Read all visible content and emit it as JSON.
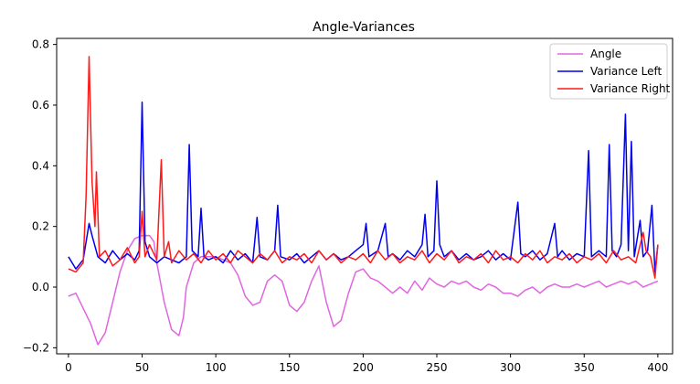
{
  "chart_data": {
    "type": "line",
    "title": "Angle-Variances",
    "xlabel": "",
    "ylabel": "",
    "xlim": [
      -8,
      410
    ],
    "ylim": [
      -0.22,
      0.82
    ],
    "x_ticks": [
      0,
      50,
      100,
      150,
      200,
      250,
      300,
      350,
      400
    ],
    "y_ticks": [
      -0.2,
      0.0,
      0.2,
      0.4,
      0.6,
      0.8
    ],
    "x_tick_labels": [
      "0",
      "50",
      "100",
      "150",
      "200",
      "250",
      "300",
      "350",
      "400"
    ],
    "y_tick_labels": [
      "−0.2",
      "0.0",
      "0.2",
      "0.4",
      "0.6",
      "0.8"
    ],
    "legend_position": "top-right",
    "grid": false,
    "series": [
      {
        "name": "Angle",
        "color": "#e066e0",
        "points": [
          [
            0,
            -0.03
          ],
          [
            5,
            -0.02
          ],
          [
            10,
            -0.07
          ],
          [
            15,
            -0.12
          ],
          [
            20,
            -0.19
          ],
          [
            25,
            -0.15
          ],
          [
            30,
            -0.05
          ],
          [
            35,
            0.05
          ],
          [
            40,
            0.12
          ],
          [
            45,
            0.16
          ],
          [
            50,
            0.17
          ],
          [
            55,
            0.17
          ],
          [
            58,
            0.15
          ],
          [
            60,
            0.08
          ],
          [
            65,
            -0.05
          ],
          [
            70,
            -0.14
          ],
          [
            75,
            -0.16
          ],
          [
            78,
            -0.1
          ],
          [
            80,
            0.0
          ],
          [
            85,
            0.08
          ],
          [
            90,
            0.1
          ],
          [
            100,
            0.1
          ],
          [
            110,
            0.08
          ],
          [
            115,
            0.04
          ],
          [
            120,
            -0.03
          ],
          [
            125,
            -0.06
          ],
          [
            130,
            -0.05
          ],
          [
            135,
            0.02
          ],
          [
            140,
            0.04
          ],
          [
            145,
            0.02
          ],
          [
            150,
            -0.06
          ],
          [
            155,
            -0.08
          ],
          [
            160,
            -0.05
          ],
          [
            165,
            0.02
          ],
          [
            170,
            0.07
          ],
          [
            175,
            -0.05
          ],
          [
            180,
            -0.13
          ],
          [
            185,
            -0.11
          ],
          [
            190,
            -0.02
          ],
          [
            195,
            0.05
          ],
          [
            200,
            0.06
          ],
          [
            205,
            0.03
          ],
          [
            210,
            0.02
          ],
          [
            215,
            0.0
          ],
          [
            220,
            -0.02
          ],
          [
            225,
            0.0
          ],
          [
            230,
            -0.02
          ],
          [
            235,
            0.02
          ],
          [
            240,
            -0.01
          ],
          [
            245,
            0.03
          ],
          [
            250,
            0.01
          ],
          [
            255,
            0.0
          ],
          [
            260,
            0.02
          ],
          [
            265,
            0.01
          ],
          [
            270,
            0.02
          ],
          [
            275,
            0.0
          ],
          [
            280,
            -0.01
          ],
          [
            285,
            0.01
          ],
          [
            290,
            0.0
          ],
          [
            295,
            -0.02
          ],
          [
            300,
            -0.02
          ],
          [
            305,
            -0.03
          ],
          [
            310,
            -0.01
          ],
          [
            315,
            0.0
          ],
          [
            320,
            -0.02
          ],
          [
            325,
            0.0
          ],
          [
            330,
            0.01
          ],
          [
            335,
            0.0
          ],
          [
            340,
            0.0
          ],
          [
            345,
            0.01
          ],
          [
            350,
            0.0
          ],
          [
            355,
            0.01
          ],
          [
            360,
            0.02
          ],
          [
            365,
            0.0
          ],
          [
            370,
            0.01
          ],
          [
            375,
            0.02
          ],
          [
            380,
            0.01
          ],
          [
            385,
            0.02
          ],
          [
            390,
            0.0
          ],
          [
            395,
            0.01
          ],
          [
            400,
            0.02
          ]
        ]
      },
      {
        "name": "Variance Left",
        "color": "#0000ee",
        "points": [
          [
            0,
            0.1
          ],
          [
            5,
            0.06
          ],
          [
            10,
            0.09
          ],
          [
            14,
            0.21
          ],
          [
            16,
            0.17
          ],
          [
            20,
            0.1
          ],
          [
            25,
            0.08
          ],
          [
            30,
            0.12
          ],
          [
            35,
            0.09
          ],
          [
            40,
            0.11
          ],
          [
            45,
            0.09
          ],
          [
            48,
            0.12
          ],
          [
            50,
            0.61
          ],
          [
            52,
            0.15
          ],
          [
            55,
            0.1
          ],
          [
            60,
            0.08
          ],
          [
            65,
            0.1
          ],
          [
            70,
            0.09
          ],
          [
            75,
            0.08
          ],
          [
            80,
            0.1
          ],
          [
            82,
            0.47
          ],
          [
            84,
            0.12
          ],
          [
            88,
            0.1
          ],
          [
            90,
            0.26
          ],
          [
            92,
            0.1
          ],
          [
            95,
            0.09
          ],
          [
            100,
            0.1
          ],
          [
            105,
            0.08
          ],
          [
            110,
            0.12
          ],
          [
            115,
            0.09
          ],
          [
            120,
            0.11
          ],
          [
            125,
            0.08
          ],
          [
            128,
            0.23
          ],
          [
            130,
            0.1
          ],
          [
            135,
            0.09
          ],
          [
            140,
            0.12
          ],
          [
            142,
            0.27
          ],
          [
            144,
            0.1
          ],
          [
            150,
            0.09
          ],
          [
            155,
            0.11
          ],
          [
            160,
            0.08
          ],
          [
            165,
            0.1
          ],
          [
            170,
            0.12
          ],
          [
            175,
            0.09
          ],
          [
            180,
            0.11
          ],
          [
            185,
            0.09
          ],
          [
            190,
            0.1
          ],
          [
            195,
            0.12
          ],
          [
            200,
            0.14
          ],
          [
            202,
            0.21
          ],
          [
            204,
            0.1
          ],
          [
            210,
            0.12
          ],
          [
            215,
            0.21
          ],
          [
            217,
            0.1
          ],
          [
            220,
            0.11
          ],
          [
            225,
            0.09
          ],
          [
            230,
            0.12
          ],
          [
            235,
            0.1
          ],
          [
            240,
            0.14
          ],
          [
            242,
            0.24
          ],
          [
            244,
            0.1
          ],
          [
            248,
            0.12
          ],
          [
            250,
            0.35
          ],
          [
            252,
            0.14
          ],
          [
            255,
            0.1
          ],
          [
            260,
            0.12
          ],
          [
            265,
            0.09
          ],
          [
            270,
            0.11
          ],
          [
            275,
            0.09
          ],
          [
            280,
            0.1
          ],
          [
            285,
            0.12
          ],
          [
            290,
            0.09
          ],
          [
            295,
            0.11
          ],
          [
            300,
            0.09
          ],
          [
            305,
            0.28
          ],
          [
            307,
            0.11
          ],
          [
            310,
            0.1
          ],
          [
            315,
            0.12
          ],
          [
            320,
            0.09
          ],
          [
            325,
            0.11
          ],
          [
            330,
            0.21
          ],
          [
            332,
            0.1
          ],
          [
            335,
            0.12
          ],
          [
            340,
            0.09
          ],
          [
            345,
            0.11
          ],
          [
            350,
            0.1
          ],
          [
            353,
            0.45
          ],
          [
            355,
            0.1
          ],
          [
            360,
            0.12
          ],
          [
            365,
            0.1
          ],
          [
            367,
            0.47
          ],
          [
            369,
            0.12
          ],
          [
            372,
            0.1
          ],
          [
            375,
            0.14
          ],
          [
            378,
            0.57
          ],
          [
            380,
            0.12
          ],
          [
            382,
            0.48
          ],
          [
            384,
            0.1
          ],
          [
            388,
            0.22
          ],
          [
            390,
            0.1
          ],
          [
            393,
            0.12
          ],
          [
            396,
            0.27
          ],
          [
            398,
            0.05
          ],
          [
            400,
            0.14
          ]
        ]
      },
      {
        "name": "Variance Right",
        "color": "#ff1a1a",
        "points": [
          [
            0,
            0.06
          ],
          [
            5,
            0.05
          ],
          [
            10,
            0.08
          ],
          [
            12,
            0.3
          ],
          [
            14,
            0.76
          ],
          [
            16,
            0.35
          ],
          [
            18,
            0.2
          ],
          [
            19,
            0.38
          ],
          [
            21,
            0.1
          ],
          [
            25,
            0.12
          ],
          [
            30,
            0.07
          ],
          [
            35,
            0.09
          ],
          [
            40,
            0.13
          ],
          [
            45,
            0.08
          ],
          [
            48,
            0.1
          ],
          [
            50,
            0.25
          ],
          [
            52,
            0.1
          ],
          [
            55,
            0.14
          ],
          [
            60,
            0.09
          ],
          [
            63,
            0.42
          ],
          [
            65,
            0.1
          ],
          [
            68,
            0.15
          ],
          [
            70,
            0.08
          ],
          [
            75,
            0.12
          ],
          [
            80,
            0.09
          ],
          [
            85,
            0.11
          ],
          [
            90,
            0.08
          ],
          [
            95,
            0.12
          ],
          [
            100,
            0.09
          ],
          [
            105,
            0.11
          ],
          [
            110,
            0.08
          ],
          [
            115,
            0.12
          ],
          [
            120,
            0.1
          ],
          [
            125,
            0.08
          ],
          [
            130,
            0.11
          ],
          [
            135,
            0.09
          ],
          [
            140,
            0.12
          ],
          [
            145,
            0.08
          ],
          [
            150,
            0.1
          ],
          [
            155,
            0.09
          ],
          [
            160,
            0.11
          ],
          [
            165,
            0.08
          ],
          [
            170,
            0.12
          ],
          [
            175,
            0.09
          ],
          [
            180,
            0.11
          ],
          [
            185,
            0.08
          ],
          [
            190,
            0.1
          ],
          [
            195,
            0.09
          ],
          [
            200,
            0.11
          ],
          [
            205,
            0.08
          ],
          [
            210,
            0.12
          ],
          [
            215,
            0.09
          ],
          [
            220,
            0.11
          ],
          [
            225,
            0.08
          ],
          [
            230,
            0.1
          ],
          [
            235,
            0.09
          ],
          [
            240,
            0.12
          ],
          [
            245,
            0.08
          ],
          [
            250,
            0.11
          ],
          [
            255,
            0.09
          ],
          [
            260,
            0.12
          ],
          [
            265,
            0.08
          ],
          [
            270,
            0.1
          ],
          [
            275,
            0.09
          ],
          [
            280,
            0.11
          ],
          [
            285,
            0.08
          ],
          [
            290,
            0.12
          ],
          [
            295,
            0.09
          ],
          [
            300,
            0.1
          ],
          [
            305,
            0.08
          ],
          [
            310,
            0.11
          ],
          [
            315,
            0.09
          ],
          [
            320,
            0.12
          ],
          [
            325,
            0.08
          ],
          [
            330,
            0.1
          ],
          [
            335,
            0.09
          ],
          [
            340,
            0.11
          ],
          [
            345,
            0.08
          ],
          [
            350,
            0.1
          ],
          [
            355,
            0.09
          ],
          [
            360,
            0.11
          ],
          [
            365,
            0.08
          ],
          [
            370,
            0.12
          ],
          [
            375,
            0.09
          ],
          [
            380,
            0.1
          ],
          [
            385,
            0.08
          ],
          [
            390,
            0.18
          ],
          [
            392,
            0.12
          ],
          [
            395,
            0.1
          ],
          [
            398,
            0.03
          ],
          [
            400,
            0.14
          ]
        ]
      }
    ]
  }
}
